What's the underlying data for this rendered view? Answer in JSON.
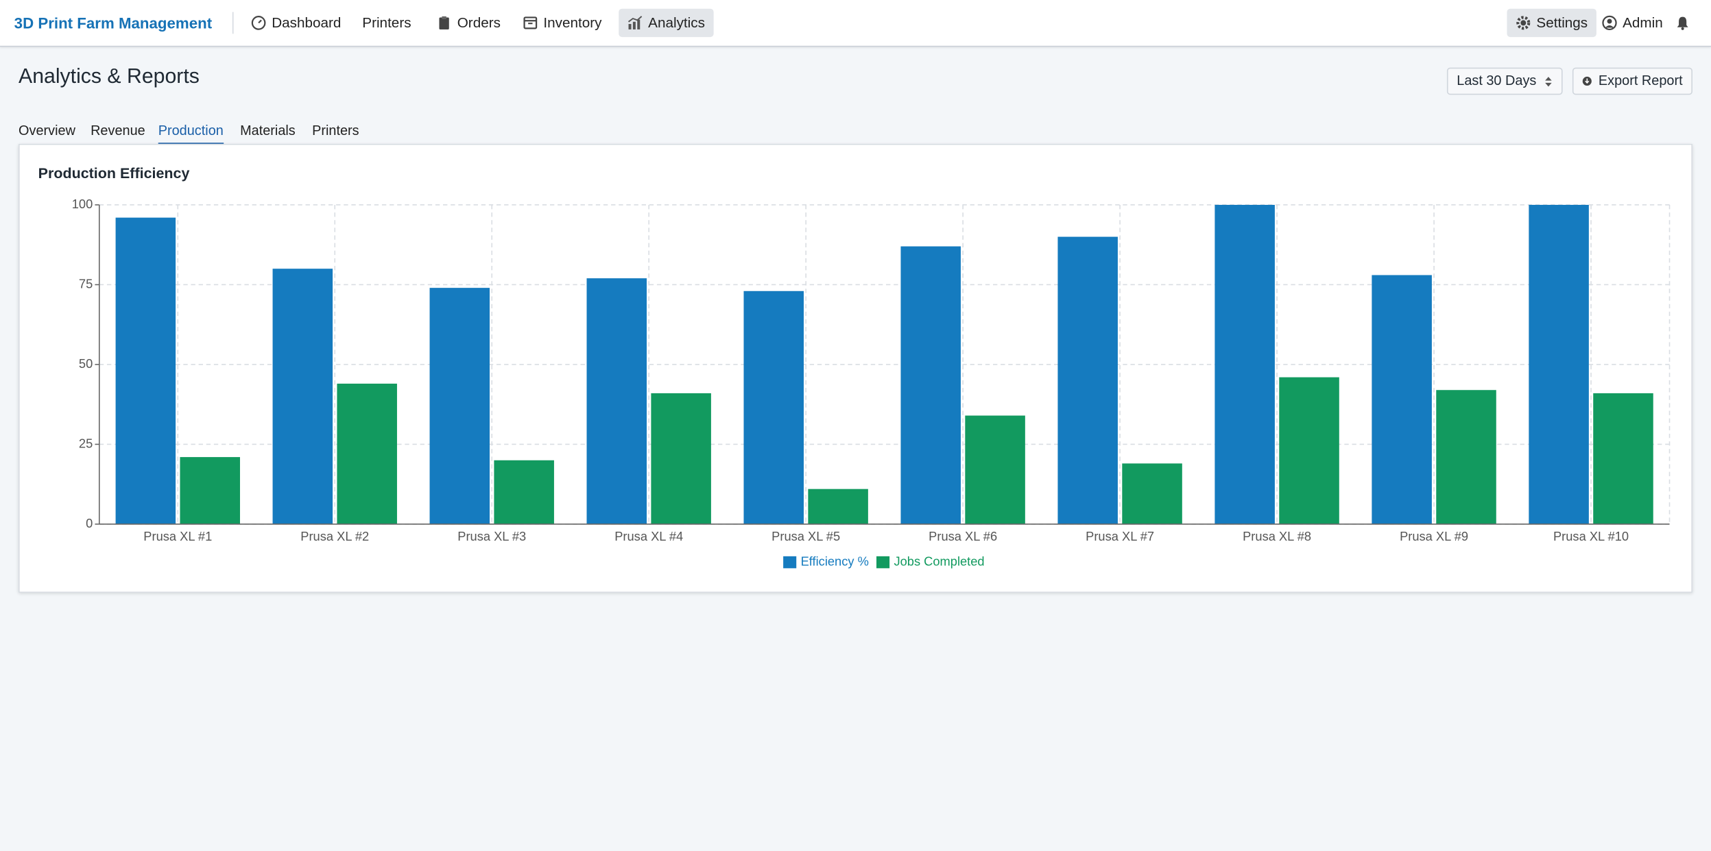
{
  "nav": {
    "brand": "3D Print Farm Management",
    "items": [
      "Dashboard",
      "Printers",
      "Orders",
      "Inventory",
      "Analytics"
    ],
    "settings": "Settings",
    "user": "Admin"
  },
  "header": {
    "title": "Analytics & Reports",
    "range": "Last 30 Days",
    "export": "Export Report"
  },
  "tabs": [
    "Overview",
    "Revenue",
    "Production",
    "Materials",
    "Printers"
  ],
  "chart_data": {
    "type": "bar",
    "title": "Production Efficiency",
    "categories": [
      "Prusa XL #1",
      "Prusa XL #2",
      "Prusa XL #3",
      "Prusa XL #4",
      "Prusa XL #5",
      "Prusa XL #6",
      "Prusa XL #7",
      "Prusa XL #8",
      "Prusa XL #9",
      "Prusa XL #10"
    ],
    "series": [
      {
        "name": "Efficiency %",
        "color": "#157bbf",
        "values": [
          96,
          80,
          74,
          77,
          73,
          87,
          90,
          100,
          78,
          100
        ]
      },
      {
        "name": "Jobs Completed",
        "color": "#129a5f",
        "values": [
          21,
          44,
          20,
          41,
          11,
          34,
          19,
          46,
          42,
          41
        ]
      }
    ],
    "ylim": [
      0,
      100
    ],
    "yticks": [
      0,
      25,
      50,
      75,
      100
    ],
    "grid": true,
    "legend": "bottom"
  }
}
